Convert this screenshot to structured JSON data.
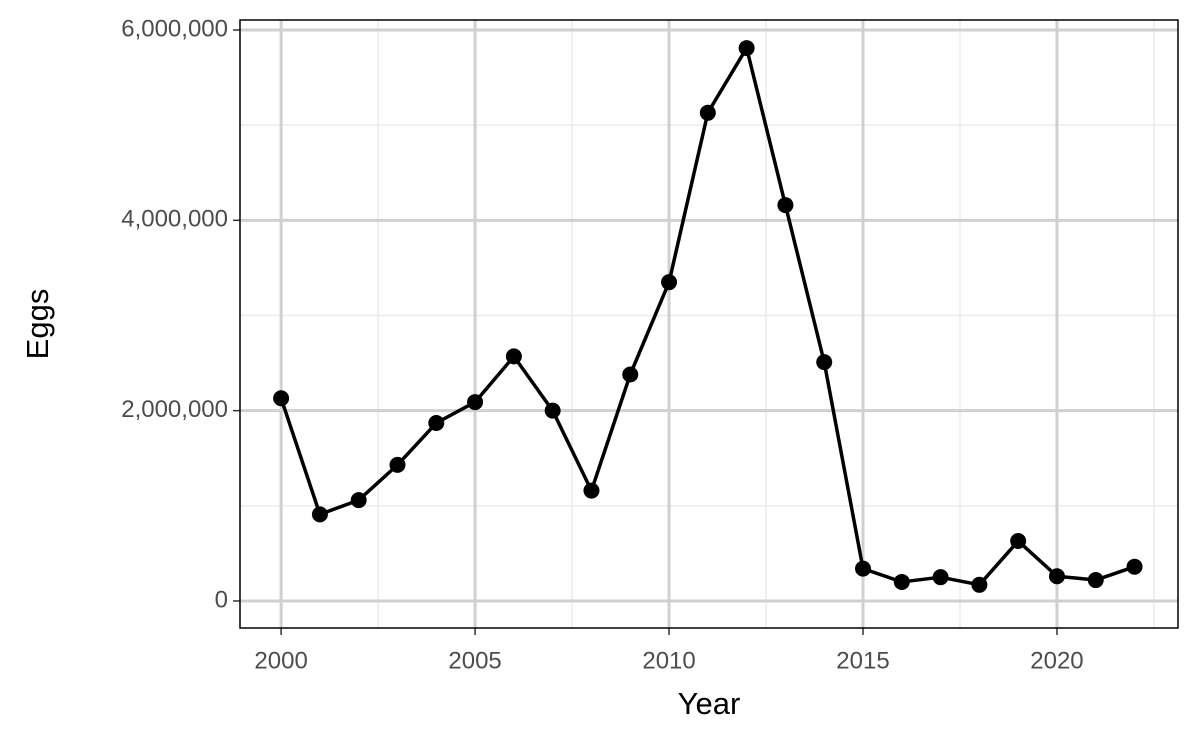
{
  "chart_data": {
    "type": "line",
    "x_label": "Year",
    "y_label": "Eggs",
    "x": [
      2000,
      2001,
      2002,
      2003,
      2004,
      2005,
      2006,
      2007,
      2008,
      2009,
      2010,
      2011,
      2012,
      2013,
      2014,
      2015,
      2016,
      2017,
      2018,
      2019,
      2020,
      2021,
      2022
    ],
    "series": [
      {
        "color": "#000000",
        "values": [
          2130000,
          910000,
          1060000,
          1430000,
          1870000,
          2090000,
          2570000,
          2000000,
          1160000,
          2380000,
          3350000,
          5130000,
          5810000,
          4160000,
          2510000,
          340000,
          200000,
          250000,
          170000,
          630000,
          260000,
          220000,
          360000
        ]
      }
    ],
    "xlim": [
      1998.94,
      2023.12
    ],
    "ylim": [
      -284000,
      6105000
    ],
    "xticks": [
      2000,
      2005,
      2010,
      2015,
      2020
    ],
    "yticks": [
      0,
      {
        "value": 2000000,
        "label": "2,000,000"
      },
      {
        "value": 4000000,
        "label": "4,000,000"
      },
      {
        "value": 6000000,
        "label": "6,000,000"
      }
    ],
    "x_minor_ticks": [
      2002.5,
      2007.5,
      2012.5,
      2017.5,
      2022.5
    ],
    "y_minor_ticks": [
      1000000,
      3000000,
      5000000
    ],
    "grid": true
  }
}
